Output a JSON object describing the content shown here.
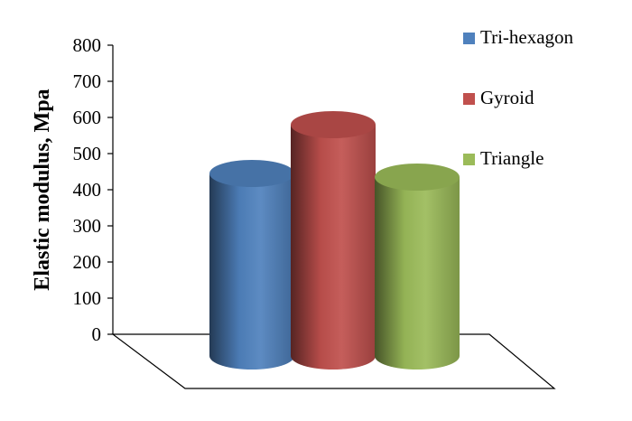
{
  "chart_data": {
    "type": "bar",
    "style": "3d-cylinder",
    "categories": [
      "Tri-hexagon",
      "Gyroid",
      "Triangle"
    ],
    "values": [
      505,
      640,
      495
    ],
    "colors": [
      "#4f81bd",
      "#c0504d",
      "#9bbb59"
    ],
    "ylabel": "Elastic modulus, Mpa",
    "xlabel": "",
    "title": "",
    "ylim": [
      0,
      800
    ],
    "yticks": [
      "0",
      "100",
      "200",
      "300",
      "400",
      "500",
      "600",
      "700",
      "800"
    ],
    "legend": {
      "position": "right",
      "entries": [
        "Tri-hexagon",
        "Gyroid",
        "Triangle"
      ]
    },
    "grid": false
  }
}
